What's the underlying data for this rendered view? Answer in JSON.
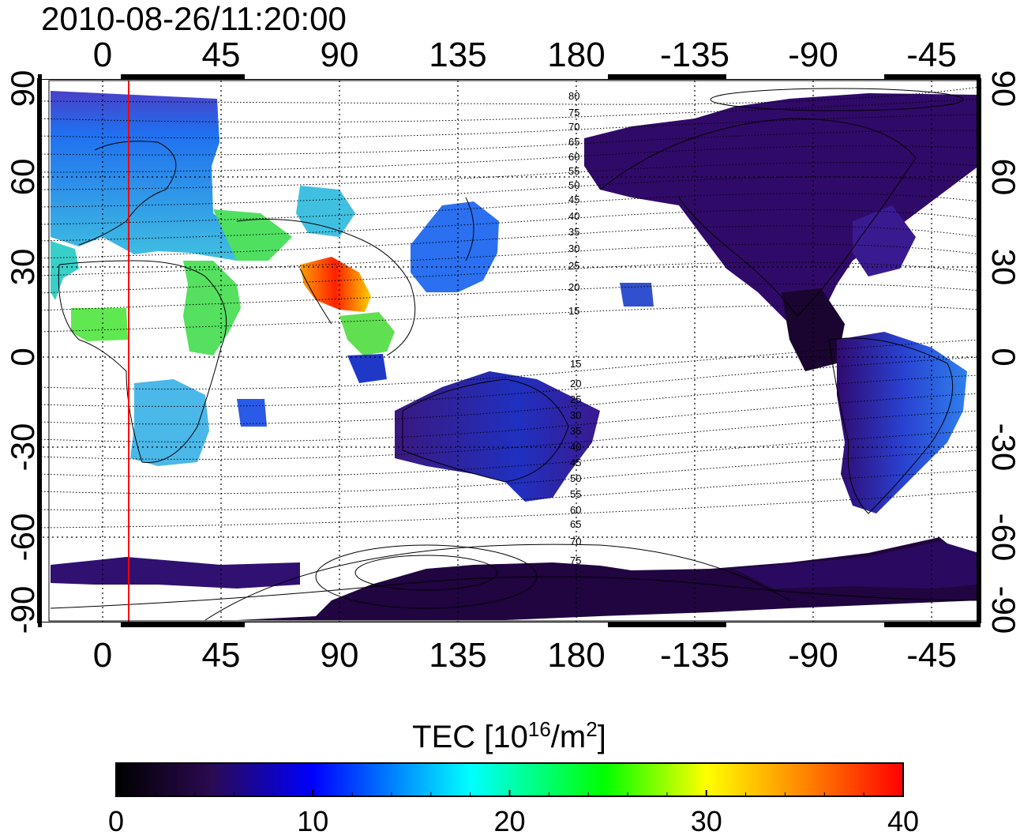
{
  "title": "2010-08-26/11:20:00",
  "map": {
    "lon_ticks": [
      "0",
      "45",
      "90",
      "135",
      "180",
      "-135",
      "-90",
      "-45"
    ],
    "lat_ticks": [
      "90",
      "60",
      "30",
      "0",
      "-30",
      "-60",
      "-90"
    ],
    "contour_labels_north": [
      "80",
      "75",
      "70",
      "65",
      "60",
      "55",
      "50",
      "45",
      "40",
      "35",
      "30",
      "25",
      "20",
      "15"
    ],
    "contour_labels_south": [
      "15",
      "20",
      "25",
      "30",
      "35",
      "40",
      "45",
      "50",
      "55",
      "60",
      "65",
      "70",
      "75"
    ],
    "terminator_longitude": 10,
    "terminator_color": "#ff0000"
  },
  "colorbar": {
    "title_prefix": "TEC  [10",
    "title_exp": "16",
    "title_mid": "/m",
    "title_exp2": "2",
    "title_suffix": "]",
    "ticks": [
      "0",
      "10",
      "20",
      "30",
      "40"
    ],
    "min": 0,
    "max": 40,
    "stops": [
      "#000000",
      "#2a0a50",
      "#0000ff",
      "#00ffff",
      "#00ff00",
      "#ffff00",
      "#ff8000",
      "#ff0000"
    ]
  },
  "tec_regions": [
    {
      "name": "europe",
      "color": "#2f8fe8"
    },
    {
      "name": "africa-north",
      "color": "#30d0d0"
    },
    {
      "name": "africa-central",
      "color": "#50e050"
    },
    {
      "name": "africa-south",
      "color": "#50b8e8"
    },
    {
      "name": "south-asia",
      "color": "#ff3000"
    },
    {
      "name": "east-asia",
      "color": "#2060f0"
    },
    {
      "name": "australia",
      "color": "#3020a0"
    },
    {
      "name": "north-america",
      "color": "#300868"
    },
    {
      "name": "south-america",
      "color": "#2050e0"
    },
    {
      "name": "antarctica",
      "color": "#200540"
    }
  ]
}
